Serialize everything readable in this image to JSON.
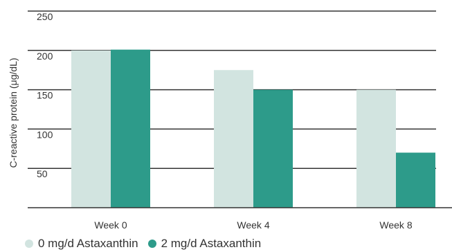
{
  "chart_data": {
    "type": "bar",
    "categories": [
      "Week 0",
      "Week 4",
      "Week 8"
    ],
    "series": [
      {
        "name": "0 mg/d Astaxanthin",
        "values": [
          200,
          175,
          150
        ],
        "color": "#d2e4e0"
      },
      {
        "name": "2 mg/d Astaxanthin",
        "values": [
          201,
          150,
          70
        ],
        "color": "#2d9b8a"
      }
    ],
    "title": "",
    "xlabel": "",
    "ylabel": "C-reactive protein (μg/dL)",
    "ylim": [
      0,
      250
    ],
    "y_ticks": [
      {
        "value": 50,
        "label": "50"
      },
      {
        "value": 100,
        "label": "100"
      },
      {
        "value": 150,
        "label": "150"
      },
      {
        "value": 200,
        "label": "200"
      },
      {
        "value": 250,
        "label": "250"
      }
    ],
    "grid": true,
    "legend_position": "bottom-left",
    "axis_color": "#333333"
  }
}
